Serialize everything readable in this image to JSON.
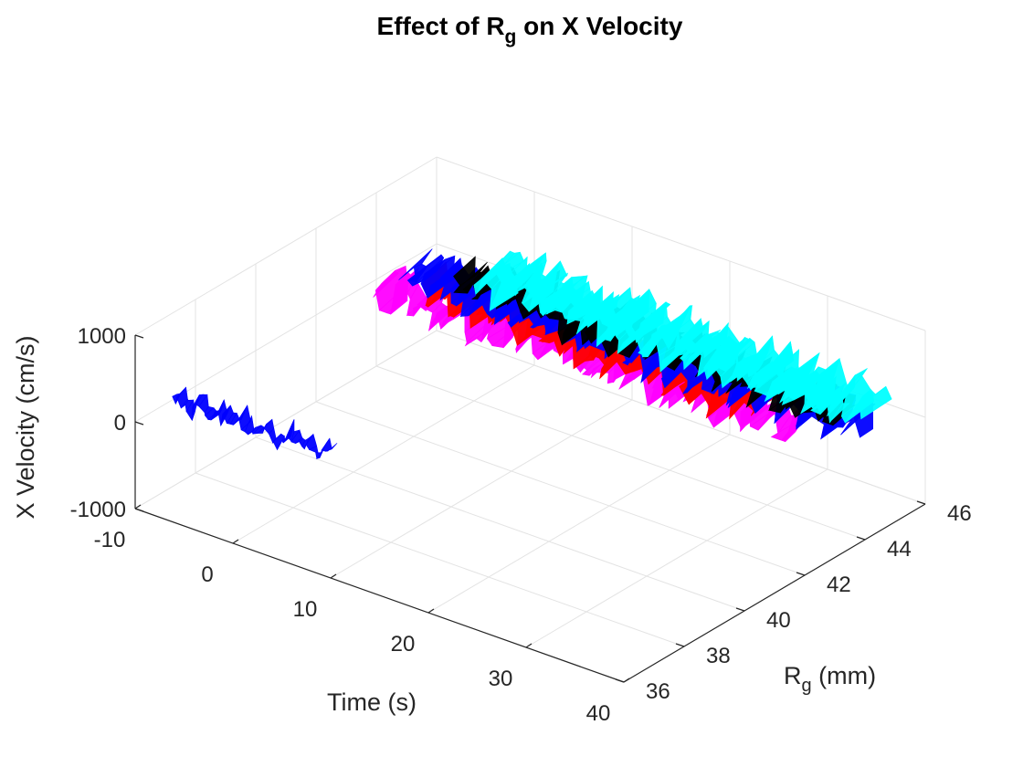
{
  "chart_data": {
    "type": "3d-ribbon",
    "title": {
      "main": "Effect of R",
      "sub": "g",
      "rest": "  on  X Velocity"
    },
    "xlabel": "Time (s)",
    "ylabel": {
      "main": "R",
      "sub": "g",
      "rest": " (mm)"
    },
    "zlabel": "X Velocity (cm/s)",
    "xlim": [
      -10,
      40
    ],
    "ylim": [
      36,
      46
    ],
    "zlim": [
      -1000,
      1000
    ],
    "x_ticks": [
      "-10",
      "0",
      "10",
      "20",
      "30",
      "40"
    ],
    "y_ticks": [
      "36",
      "38",
      "40",
      "42",
      "44",
      "46"
    ],
    "z_ticks": [
      "-1000",
      "0",
      "1000"
    ],
    "grid": true,
    "colors": {
      "blue": "#0000ff",
      "magenta": "#ff00ff",
      "cyan": "#00ffff",
      "black": "#000000",
      "red": "#ff0000"
    },
    "series": [
      {
        "color": "blue",
        "rg": 37.3,
        "t_range": [
          -10,
          6
        ]
      },
      {
        "color": "magenta",
        "rg": 44.0,
        "t_range": [
          -9,
          33
        ]
      },
      {
        "color": "red",
        "rg": 44.6,
        "t_range": [
          -6,
          29
        ]
      },
      {
        "color": "blue",
        "rg": 45.0,
        "t_range": [
          -9,
          37
        ]
      },
      {
        "color": "black",
        "rg": 45.3,
        "t_range": [
          -5,
          34
        ]
      },
      {
        "color": "cyan",
        "rg": 45.6,
        "t_range": [
          -4,
          33
        ]
      },
      {
        "color": "cyan",
        "rg": 45.9,
        "t_range": [
          -3,
          35
        ]
      }
    ]
  }
}
